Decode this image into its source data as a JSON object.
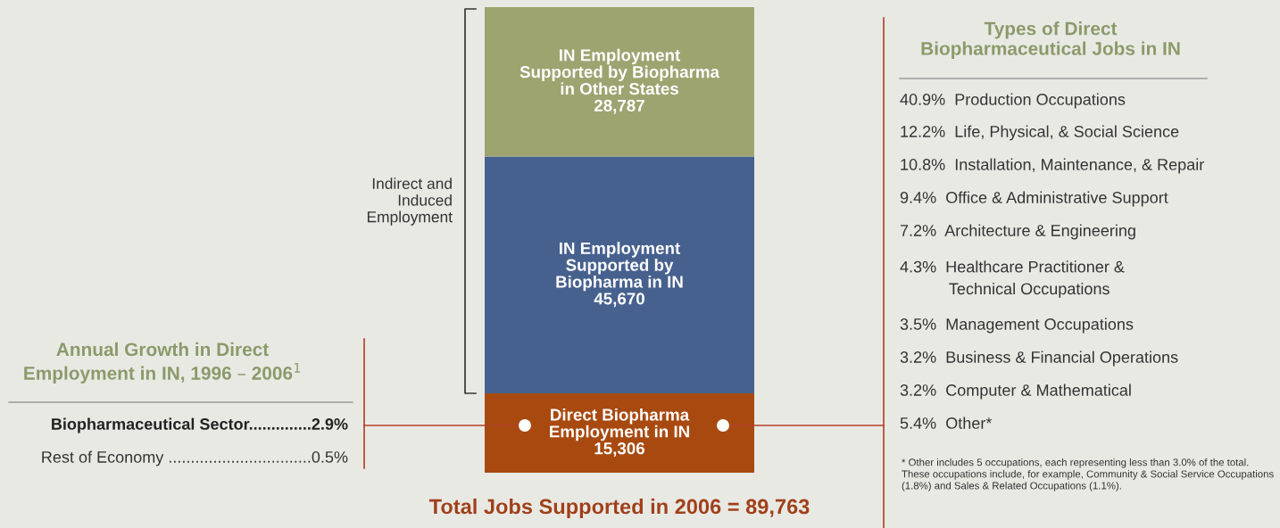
{
  "chart_data": {
    "type": "bar",
    "stacked": true,
    "categories": [
      null
    ],
    "title": "Total Jobs Supported in 2006 = 89,763",
    "series": [
      {
        "name": "Direct Biopharma\nEmployment in IN",
        "color": "#a84a10",
        "values": [
          15306
        ],
        "value_labels": [
          "15,306"
        ]
      },
      {
        "name": "IN Employment\nSupported by\nBiopharma in IN",
        "color": "#47618e",
        "values": [
          45670
        ],
        "value_labels": [
          "45,670"
        ]
      },
      {
        "name": "IN Employment\nSupported by Biopharma\nin Other States",
        "color": "#9da470",
        "values": [
          28787
        ],
        "value_labels": [
          "28,787"
        ]
      }
    ],
    "annotations": [
      "Indirect and\nInduced\nEmployment",
      "Annual Growth in Direct\nEmployment in IN, 1996 – 2006$^{1}$",
      "Biopharmaceutical Sector..............2.9%",
      "Rest of Economy ................................0.5%",
      "Types of Direct\nBiopharmaceutical Jobs in IN",
      "40.9%  Production Occupations",
      "12.2%  Life, Physical, & Social Science",
      "10.8%  Installation, Maintenance, & Repair",
      "9.4%  Office & Administrative Support",
      "7.2%  Architecture & Engineering",
      "4.3%  Healthcare Practitioner &\n           Technical Occupations",
      "3.5%  Management Occupations",
      "3.2%  Business & Financial Operations",
      "3.2%  Computer & Mathematical",
      "5.4%  Other*",
      "* Other includes 5 occupations, each representing less than 3.0% of the total. These occupations include, for example, Community & Social Service Occupations (1.8%) and Sales & Related Occupations (1.1%)."
    ]
  }
}
